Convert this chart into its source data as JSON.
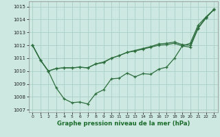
{
  "background_color": "#cce8e0",
  "grid_color": "#aacfc8",
  "line_color": "#2d6e3e",
  "title": "Graphe pression niveau de la mer (hPa)",
  "xlim": [
    -0.5,
    23.5
  ],
  "ylim": [
    1006.8,
    1015.4
  ],
  "yticks": [
    1007,
    1008,
    1009,
    1010,
    1011,
    1012,
    1013,
    1014,
    1015
  ],
  "xticks": [
    0,
    1,
    2,
    3,
    4,
    5,
    6,
    7,
    8,
    9,
    10,
    11,
    12,
    13,
    14,
    15,
    16,
    17,
    18,
    19,
    20,
    21,
    22,
    23
  ],
  "line1_x": [
    0,
    1,
    2,
    3,
    4,
    5,
    6,
    7,
    8,
    9,
    10,
    11,
    12,
    13,
    14,
    15,
    16,
    17,
    18,
    19,
    20,
    21,
    22,
    23
  ],
  "line1_y": [
    1012.0,
    1010.85,
    1010.0,
    1010.2,
    1010.25,
    1010.25,
    1010.3,
    1010.25,
    1010.55,
    1010.7,
    1011.0,
    1011.2,
    1011.45,
    1011.6,
    1011.75,
    1011.9,
    1012.1,
    1012.15,
    1012.25,
    1012.05,
    1012.0,
    1013.35,
    1014.15,
    1014.75
  ],
  "line2_x": [
    0,
    1,
    2,
    3,
    4,
    5,
    6,
    7,
    8,
    9,
    10,
    11,
    12,
    13,
    14,
    15,
    16,
    17,
    18,
    19,
    20,
    21,
    22,
    23
  ],
  "line2_y": [
    1012.0,
    1010.85,
    1010.0,
    1008.7,
    1007.85,
    1007.55,
    1007.6,
    1007.45,
    1008.25,
    1008.55,
    1009.4,
    1009.45,
    1009.85,
    1009.55,
    1009.8,
    1009.75,
    1010.15,
    1010.3,
    1011.0,
    1011.95,
    1011.85,
    1013.3,
    1014.1,
    1014.8
  ],
  "line3_x": [
    0,
    1,
    2,
    3,
    4,
    5,
    6,
    7,
    8,
    9,
    10,
    11,
    12,
    13,
    14,
    15,
    16,
    17,
    18,
    19,
    20,
    21,
    22,
    23
  ],
  "line3_y": [
    1012.0,
    1010.85,
    1010.0,
    1010.2,
    1010.25,
    1010.25,
    1010.3,
    1010.25,
    1010.55,
    1010.65,
    1011.0,
    1011.2,
    1011.45,
    1011.55,
    1011.7,
    1011.85,
    1012.0,
    1012.05,
    1012.15,
    1011.95,
    1012.15,
    1013.55,
    1014.2,
    1014.75
  ]
}
